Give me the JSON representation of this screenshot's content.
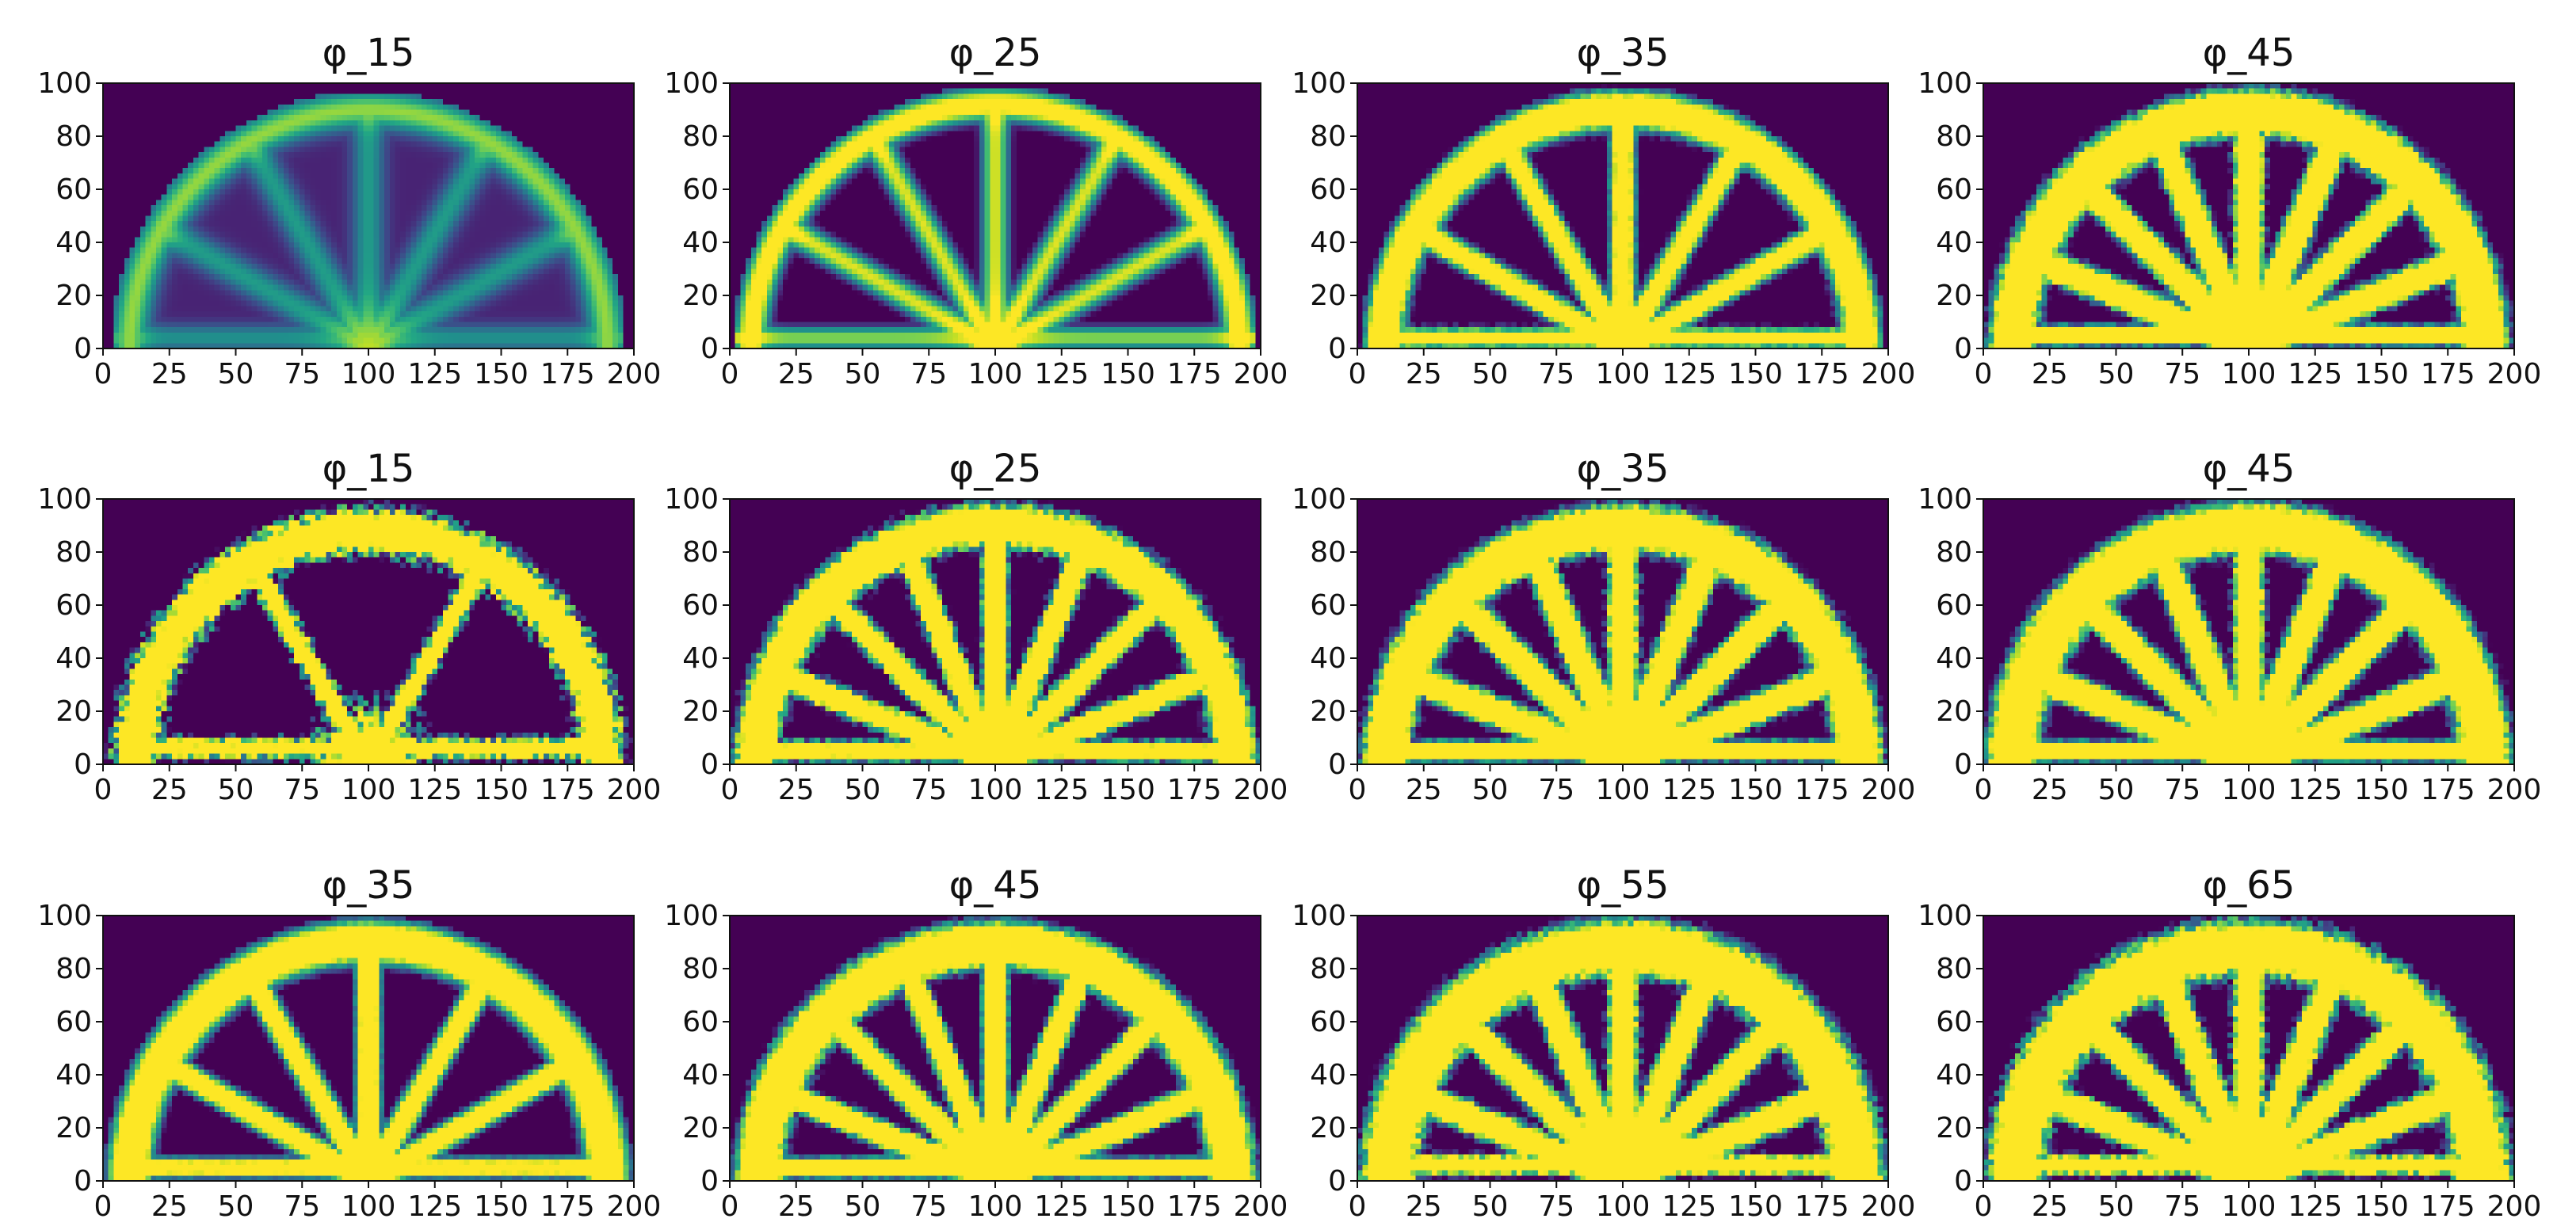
{
  "figure": {
    "background": "#ffffff",
    "colormap": "viridis",
    "colormap_low": "#440154",
    "colormap_mid": "#21918c",
    "colormap_high": "#fde725"
  },
  "chart_data": [
    {
      "type": "heatmap",
      "row": 1,
      "col": 1,
      "title": "φ_15",
      "xlim": [
        0,
        200
      ],
      "ylim": [
        0,
        100
      ],
      "xticks": [
        0,
        25,
        50,
        75,
        100,
        125,
        150,
        175,
        200
      ],
      "yticks": [
        0,
        20,
        40,
        60,
        80,
        100
      ],
      "xlabel": "",
      "ylabel": "",
      "grid": false,
      "pattern": {
        "ring_radius": 90,
        "ring_width": 7,
        "spokes": 5,
        "spoke_width": 6,
        "hub_radius": 16,
        "chord_y": 4,
        "sharpness": 0.28,
        "noise": 0.0
      }
    },
    {
      "type": "heatmap",
      "row": 1,
      "col": 2,
      "title": "φ_25",
      "xlim": [
        0,
        200
      ],
      "ylim": [
        0,
        100
      ],
      "xticks": [
        0,
        25,
        50,
        75,
        100,
        125,
        150,
        175,
        200
      ],
      "yticks": [
        0,
        20,
        40,
        60,
        80,
        100
      ],
      "xlabel": "",
      "ylabel": "",
      "grid": false,
      "pattern": {
        "ring_radius": 92,
        "ring_width": 7,
        "spokes": 5,
        "spoke_width": 6,
        "hub_radius": 16,
        "chord_y": 4,
        "sharpness": 0.55,
        "noise": 0.0
      }
    },
    {
      "type": "heatmap",
      "row": 1,
      "col": 3,
      "title": "φ_35",
      "xlim": [
        0,
        200
      ],
      "ylim": [
        0,
        100
      ],
      "xticks": [
        0,
        25,
        50,
        75,
        100,
        125,
        150,
        175,
        200
      ],
      "yticks": [
        0,
        20,
        40,
        60,
        80,
        100
      ],
      "xlabel": "",
      "ylabel": "",
      "grid": false,
      "pattern": {
        "ring_radius": 90,
        "ring_width": 9,
        "spokes": 5,
        "spoke_width": 6,
        "hub_radius": 17,
        "chord_y": 4,
        "sharpness": 0.78,
        "noise": 0.08
      }
    },
    {
      "type": "heatmap",
      "row": 1,
      "col": 4,
      "title": "φ_45",
      "xlim": [
        0,
        200
      ],
      "ylim": [
        0,
        100
      ],
      "xticks": [
        0,
        25,
        50,
        75,
        100,
        125,
        150,
        175,
        200
      ],
      "yticks": [
        0,
        20,
        40,
        60,
        80,
        100
      ],
      "xlabel": "",
      "ylabel": "",
      "grid": false,
      "pattern": {
        "ring_radius": 89,
        "ring_width": 11,
        "spokes": 7,
        "spoke_width": 7,
        "hub_radius": 18,
        "chord_y": 5,
        "sharpness": 0.95,
        "noise": 0.14
      }
    },
    {
      "type": "heatmap",
      "row": 2,
      "col": 1,
      "title": "φ_15",
      "xlim": [
        0,
        200
      ],
      "ylim": [
        0,
        100
      ],
      "xticks": [
        0,
        25,
        50,
        75,
        100,
        125,
        150,
        175,
        200
      ],
      "yticks": [
        0,
        20,
        40,
        60,
        80,
        100
      ],
      "xlabel": "",
      "ylabel": "",
      "grid": false,
      "pattern": {
        "ring_radius": 88,
        "ring_width": 10,
        "spokes": 2,
        "spoke_width": 5,
        "hub_radius": 24,
        "chord_y": 6,
        "sharpness": 0.92,
        "noise": 0.35
      }
    },
    {
      "type": "heatmap",
      "row": 2,
      "col": 2,
      "title": "φ_25",
      "xlim": [
        0,
        200
      ],
      "ylim": [
        0,
        100
      ],
      "xticks": [
        0,
        25,
        50,
        75,
        100,
        125,
        150,
        175,
        200
      ],
      "yticks": [
        0,
        20,
        40,
        60,
        80,
        100
      ],
      "xlabel": "",
      "ylabel": "",
      "grid": false,
      "pattern": {
        "ring_radius": 90,
        "ring_width": 10,
        "spokes": 7,
        "spoke_width": 6,
        "hub_radius": 16,
        "chord_y": 5,
        "sharpness": 0.95,
        "noise": 0.2
      }
    },
    {
      "type": "heatmap",
      "row": 2,
      "col": 3,
      "title": "φ_35",
      "xlim": [
        0,
        200
      ],
      "ylim": [
        0,
        100
      ],
      "xticks": [
        0,
        25,
        50,
        75,
        100,
        125,
        150,
        175,
        200
      ],
      "yticks": [
        0,
        20,
        40,
        60,
        80,
        100
      ],
      "xlabel": "",
      "ylabel": "",
      "grid": false,
      "pattern": {
        "ring_radius": 89,
        "ring_width": 11,
        "spokes": 7,
        "spoke_width": 7,
        "hub_radius": 17,
        "chord_y": 5,
        "sharpness": 0.97,
        "noise": 0.16
      }
    },
    {
      "type": "heatmap",
      "row": 2,
      "col": 4,
      "title": "φ_45",
      "xlim": [
        0,
        200
      ],
      "ylim": [
        0,
        100
      ],
      "xticks": [
        0,
        25,
        50,
        75,
        100,
        125,
        150,
        175,
        200
      ],
      "yticks": [
        0,
        20,
        40,
        60,
        80,
        100
      ],
      "xlabel": "",
      "ylabel": "",
      "grid": false,
      "pattern": {
        "ring_radius": 89,
        "ring_width": 12,
        "spokes": 7,
        "spoke_width": 7,
        "hub_radius": 18,
        "chord_y": 5,
        "sharpness": 0.97,
        "noise": 0.14
      }
    },
    {
      "type": "heatmap",
      "row": 3,
      "col": 1,
      "title": "φ_35",
      "xlim": [
        0,
        200
      ],
      "ylim": [
        0,
        100
      ],
      "xticks": [
        0,
        25,
        50,
        75,
        100,
        125,
        150,
        175,
        200
      ],
      "yticks": [
        0,
        20,
        40,
        60,
        80,
        100
      ],
      "xlabel": "",
      "ylabel": "",
      "grid": false,
      "pattern": {
        "ring_radius": 90,
        "ring_width": 10,
        "spokes": 5,
        "spoke_width": 6,
        "hub_radius": 17,
        "chord_y": 5,
        "sharpness": 0.8,
        "noise": 0.05
      }
    },
    {
      "type": "heatmap",
      "row": 3,
      "col": 2,
      "title": "φ_45",
      "xlim": [
        0,
        200
      ],
      "ylim": [
        0,
        100
      ],
      "xticks": [
        0,
        25,
        50,
        75,
        100,
        125,
        150,
        175,
        200
      ],
      "yticks": [
        0,
        20,
        40,
        60,
        80,
        100
      ],
      "xlabel": "",
      "ylabel": "",
      "grid": false,
      "pattern": {
        "ring_radius": 89,
        "ring_width": 11,
        "spokes": 7,
        "spoke_width": 6,
        "hub_radius": 18,
        "chord_y": 5,
        "sharpness": 0.93,
        "noise": 0.12
      }
    },
    {
      "type": "heatmap",
      "row": 3,
      "col": 3,
      "title": "φ_55",
      "xlim": [
        0,
        200
      ],
      "ylim": [
        0,
        100
      ],
      "xticks": [
        0,
        25,
        50,
        75,
        100,
        125,
        150,
        175,
        200
      ],
      "yticks": [
        0,
        20,
        40,
        60,
        80,
        100
      ],
      "xlabel": "",
      "ylabel": "",
      "grid": false,
      "pattern": {
        "ring_radius": 88,
        "ring_width": 13,
        "spokes": 7,
        "spoke_width": 7,
        "hub_radius": 20,
        "chord_y": 6,
        "sharpness": 0.97,
        "noise": 0.16
      }
    },
    {
      "type": "heatmap",
      "row": 3,
      "col": 4,
      "title": "φ_65",
      "xlim": [
        0,
        200
      ],
      "ylim": [
        0,
        100
      ],
      "xticks": [
        0,
        25,
        50,
        75,
        100,
        125,
        150,
        175,
        200
      ],
      "yticks": [
        0,
        20,
        40,
        60,
        80,
        100
      ],
      "xlabel": "",
      "ylabel": "",
      "grid": false,
      "pattern": {
        "ring_radius": 88,
        "ring_width": 13,
        "spokes": 7,
        "spoke_width": 7,
        "hub_radius": 20,
        "chord_y": 6,
        "sharpness": 0.98,
        "noise": 0.2
      }
    }
  ]
}
